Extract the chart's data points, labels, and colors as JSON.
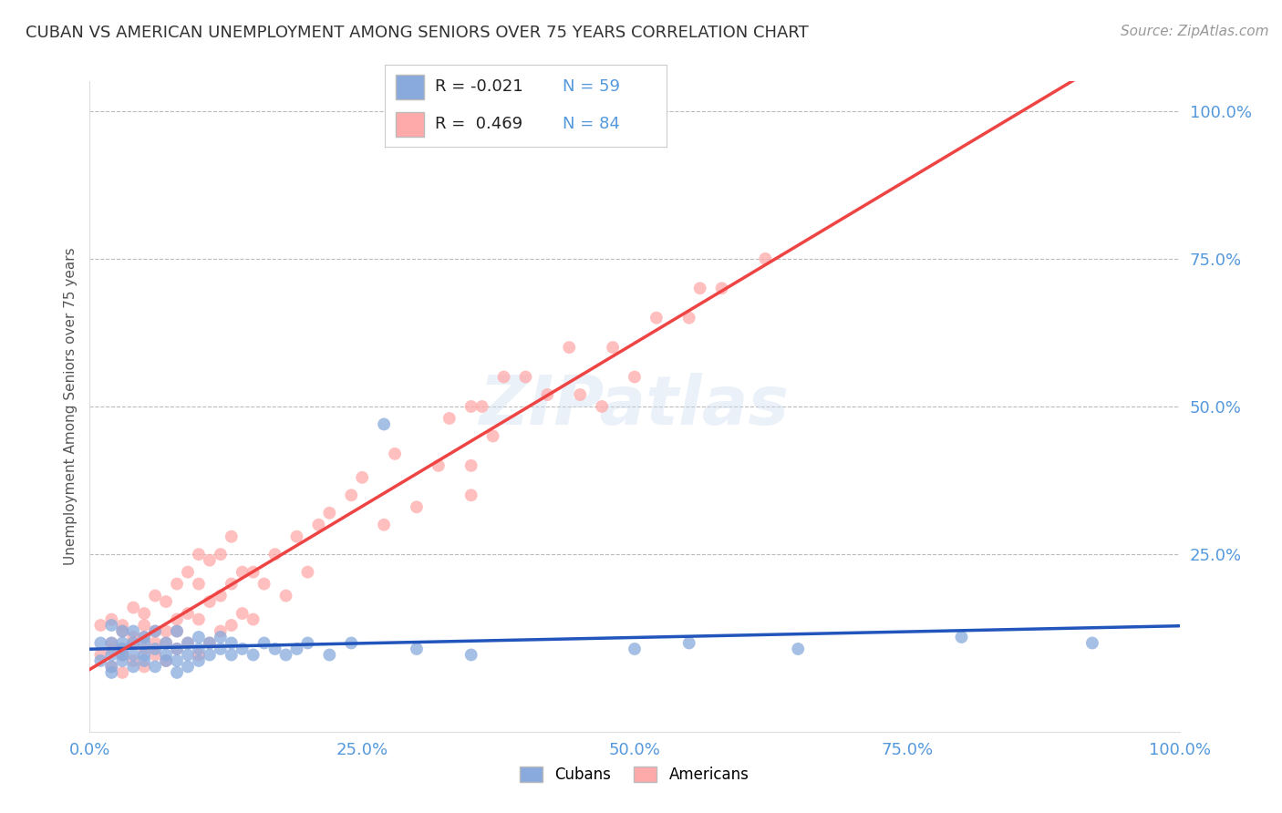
{
  "title": "CUBAN VS AMERICAN UNEMPLOYMENT AMONG SENIORS OVER 75 YEARS CORRELATION CHART",
  "source_text": "Source: ZipAtlas.com",
  "ylabel": "Unemployment Among Seniors over 75 years",
  "xlim": [
    0.0,
    1.0
  ],
  "ylim": [
    -0.05,
    1.05
  ],
  "xtick_labels": [
    "0.0%",
    "25.0%",
    "50.0%",
    "75.0%",
    "100.0%"
  ],
  "xtick_values": [
    0.0,
    0.25,
    0.5,
    0.75,
    1.0
  ],
  "ytick_labels": [
    "100.0%",
    "75.0%",
    "50.0%",
    "25.0%"
  ],
  "ytick_values": [
    1.0,
    0.75,
    0.5,
    0.25
  ],
  "cuban_color": "#88AADD",
  "american_color": "#FFAAAA",
  "cuban_line_color": "#2255BB",
  "american_line_color": "#EE4444",
  "ref_line_color": "#DDAAAA",
  "background_color": "#FFFFFF",
  "watermark": "ZIPatlas",
  "legend_R_cuban": "-0.021",
  "legend_N_cuban": "59",
  "legend_R_american": "0.469",
  "legend_N_american": "84",
  "tick_color": "#5599DD",
  "cuban_x": [
    0.01,
    0.01,
    0.02,
    0.02,
    0.02,
    0.02,
    0.02,
    0.03,
    0.03,
    0.03,
    0.03,
    0.03,
    0.04,
    0.04,
    0.04,
    0.04,
    0.05,
    0.05,
    0.05,
    0.05,
    0.06,
    0.06,
    0.06,
    0.07,
    0.07,
    0.07,
    0.08,
    0.08,
    0.08,
    0.08,
    0.09,
    0.09,
    0.09,
    0.1,
    0.1,
    0.1,
    0.11,
    0.11,
    0.12,
    0.12,
    0.13,
    0.13,
    0.14,
    0.15,
    0.16,
    0.17,
    0.18,
    0.19,
    0.2,
    0.22,
    0.24,
    0.27,
    0.3,
    0.35,
    0.5,
    0.55,
    0.65,
    0.8,
    0.92
  ],
  "cuban_y": [
    0.07,
    0.1,
    0.05,
    0.08,
    0.1,
    0.13,
    0.06,
    0.08,
    0.1,
    0.07,
    0.12,
    0.09,
    0.06,
    0.1,
    0.08,
    0.12,
    0.07,
    0.1,
    0.08,
    0.11,
    0.06,
    0.09,
    0.12,
    0.07,
    0.1,
    0.08,
    0.05,
    0.09,
    0.12,
    0.07,
    0.08,
    0.1,
    0.06,
    0.09,
    0.11,
    0.07,
    0.08,
    0.1,
    0.09,
    0.11,
    0.08,
    0.1,
    0.09,
    0.08,
    0.1,
    0.09,
    0.08,
    0.09,
    0.1,
    0.08,
    0.1,
    0.47,
    0.09,
    0.08,
    0.09,
    0.1,
    0.09,
    0.11,
    0.1
  ],
  "american_x": [
    0.01,
    0.01,
    0.02,
    0.02,
    0.02,
    0.02,
    0.03,
    0.03,
    0.03,
    0.03,
    0.03,
    0.04,
    0.04,
    0.04,
    0.04,
    0.05,
    0.05,
    0.05,
    0.05,
    0.05,
    0.06,
    0.06,
    0.06,
    0.06,
    0.07,
    0.07,
    0.07,
    0.07,
    0.08,
    0.08,
    0.08,
    0.08,
    0.09,
    0.09,
    0.09,
    0.1,
    0.1,
    0.1,
    0.1,
    0.11,
    0.11,
    0.11,
    0.12,
    0.12,
    0.12,
    0.13,
    0.13,
    0.13,
    0.14,
    0.14,
    0.15,
    0.15,
    0.16,
    0.17,
    0.18,
    0.19,
    0.2,
    0.21,
    0.22,
    0.24,
    0.25,
    0.27,
    0.28,
    0.3,
    0.32,
    0.33,
    0.35,
    0.37,
    0.4,
    0.42,
    0.44,
    0.47,
    0.5,
    0.55,
    0.58,
    0.35,
    0.35,
    0.36,
    0.38,
    0.45,
    0.48,
    0.52,
    0.56,
    0.62
  ],
  "american_y": [
    0.08,
    0.13,
    0.06,
    0.1,
    0.14,
    0.09,
    0.05,
    0.09,
    0.13,
    0.08,
    0.12,
    0.07,
    0.11,
    0.16,
    0.1,
    0.06,
    0.11,
    0.15,
    0.09,
    0.13,
    0.08,
    0.12,
    0.18,
    0.1,
    0.07,
    0.12,
    0.17,
    0.1,
    0.09,
    0.14,
    0.2,
    0.12,
    0.1,
    0.15,
    0.22,
    0.08,
    0.14,
    0.2,
    0.25,
    0.1,
    0.17,
    0.24,
    0.12,
    0.18,
    0.25,
    0.13,
    0.2,
    0.28,
    0.15,
    0.22,
    0.14,
    0.22,
    0.2,
    0.25,
    0.18,
    0.28,
    0.22,
    0.3,
    0.32,
    0.35,
    0.38,
    0.3,
    0.42,
    0.33,
    0.4,
    0.48,
    0.5,
    0.45,
    0.55,
    0.52,
    0.6,
    0.5,
    0.55,
    0.65,
    0.7,
    0.35,
    0.4,
    0.5,
    0.55,
    0.52,
    0.6,
    0.65,
    0.7,
    0.75
  ]
}
